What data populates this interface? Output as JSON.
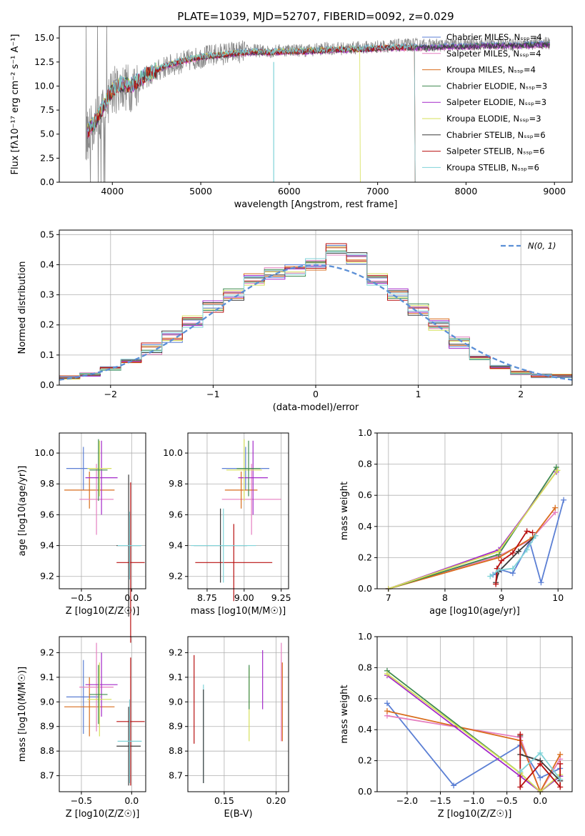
{
  "figure": {
    "title": "PLATE=1039, MJD=52707, FIBERID=0092, z=0.029"
  },
  "chart_data": [
    {
      "id": "spectrum",
      "type": "line",
      "title": "PLATE=1039, MJD=52707, FIBERID=0092, z=0.029",
      "xlabel": "wavelength [Angstrom, rest frame]",
      "ylabel": "Flux [fλ10⁻¹⁷ erg cm⁻² s⁻¹ A⁻¹]",
      "xlim": [
        3400,
        9200
      ],
      "ylim": [
        0,
        16.2
      ],
      "xticks": [
        4000,
        5000,
        6000,
        7000,
        8000,
        9000
      ],
      "yticks": [
        0.0,
        2.5,
        5.0,
        7.5,
        10.0,
        12.5,
        15.0
      ],
      "grid": false,
      "legend_position": "right",
      "x": [
        3700,
        3800,
        3900,
        3950,
        4000,
        4100,
        4200,
        4300,
        4400,
        4500,
        4600,
        4800,
        5000,
        5200,
        5400,
        5600,
        5800,
        6000,
        6200,
        6400,
        6600,
        6800,
        7000,
        7200,
        7400,
        7600,
        7800,
        8000,
        8200,
        8400,
        8600,
        8800,
        8900
      ],
      "observed_flux": [
        4.5,
        6.0,
        7.5,
        8.5,
        9.5,
        10.0,
        9.8,
        10.5,
        11.0,
        11.5,
        12.0,
        12.5,
        13.0,
        13.3,
        13.5,
        13.7,
        13.6,
        13.8,
        13.7,
        13.9,
        13.9,
        14.0,
        14.1,
        14.2,
        14.3,
        14.2,
        14.3,
        14.3,
        14.4,
        14.4,
        14.3,
        14.5,
        14.5
      ],
      "model_flux": [
        5.0,
        6.2,
        7.8,
        8.8,
        9.6,
        10.2,
        10.0,
        10.6,
        11.2,
        11.6,
        12.1,
        12.6,
        13.0,
        13.2,
        13.4,
        13.5,
        13.5,
        13.6,
        13.6,
        13.7,
        13.8,
        13.8,
        13.9,
        14.0,
        14.0,
        14.0,
        14.1,
        14.1,
        14.2,
        14.2,
        14.2,
        14.3,
        14.3
      ],
      "series": [
        {
          "name": "Chabrier MILES, N_SSP=4",
          "color": "#5b7fd4"
        },
        {
          "name": "Salpeter MILES, N_SSP=4",
          "color": "#e57fc0"
        },
        {
          "name": "Kroupa MILES, N_SSP=4",
          "color": "#d96d1c"
        },
        {
          "name": "Chabrier ELODIE, N_SSP=3",
          "color": "#3f8a4f"
        },
        {
          "name": "Salpeter ELODIE, N_SSP=3",
          "color": "#a329c9"
        },
        {
          "name": "Kroupa ELODIE, N_SSP=3",
          "color": "#d6e05a"
        },
        {
          "name": "Chabrier STELIB, N_SSP=6",
          "color": "#3a3a3a"
        },
        {
          "name": "Salpeter STELIB, N_SSP=6",
          "color": "#b80f0f"
        },
        {
          "name": "Kroupa STELIB, N_SSP=6",
          "color": "#7fd3d8"
        }
      ]
    },
    {
      "id": "residuals",
      "type": "line",
      "xlabel": "(data-model)/error",
      "ylabel": "Normed distribution",
      "xlim": [
        -2.5,
        2.5
      ],
      "ylim": [
        0,
        0.515
      ],
      "xticks": [
        -2,
        -1,
        0,
        1,
        2
      ],
      "yticks": [
        0.0,
        0.1,
        0.2,
        0.3,
        0.4,
        0.5
      ],
      "grid": true,
      "legend_position": "top-right",
      "legend": "N(0, 1)",
      "bin_edges": [
        -2.5,
        -2.3,
        -2.1,
        -1.9,
        -1.7,
        -1.5,
        -1.3,
        -1.1,
        -0.9,
        -0.7,
        -0.5,
        -0.3,
        -0.1,
        0.1,
        0.3,
        0.5,
        0.7,
        0.9,
        1.1,
        1.3,
        1.5,
        1.7,
        1.9,
        2.1,
        2.3,
        2.5
      ],
      "histogram": [
        0.025,
        0.035,
        0.055,
        0.08,
        0.12,
        0.16,
        0.21,
        0.26,
        0.3,
        0.35,
        0.37,
        0.38,
        0.4,
        0.45,
        0.42,
        0.35,
        0.3,
        0.25,
        0.2,
        0.14,
        0.09,
        0.06,
        0.04,
        0.03,
        0.03
      ]
    },
    {
      "id": "age_vs_Z",
      "type": "scatter",
      "xlabel": "Z [log10(Z/Z☉)]",
      "ylabel": "age [log10(age/yr)]",
      "xlim": [
        -0.72,
        0.14
      ],
      "ylim": [
        9.12,
        10.13
      ],
      "xticks": [
        -0.5,
        0.0
      ],
      "yticks": [
        9.2,
        9.4,
        9.6,
        9.8,
        10.0
      ],
      "grid": true,
      "points": [
        {
          "x": -0.48,
          "y": 9.9,
          "xerr": 0.17,
          "yerr": 0.14,
          "color": "#5b7fd4"
        },
        {
          "x": -0.42,
          "y": 9.76,
          "xerr": 0.25,
          "yerr": 0.12,
          "color": "#d96d1c"
        },
        {
          "x": -0.35,
          "y": 9.7,
          "xerr": 0.17,
          "yerr": 0.23,
          "color": "#e57fc0"
        },
        {
          "x": -0.3,
          "y": 9.84,
          "xerr": 0.16,
          "yerr": 0.24,
          "color": "#a329c9"
        },
        {
          "x": -0.32,
          "y": 9.9,
          "xerr": 0.12,
          "yerr": 0.18,
          "color": "#d6e05a"
        },
        {
          "x": -0.33,
          "y": 9.89,
          "xerr": 0.09,
          "yerr": 0.2,
          "color": "#3f8a4f"
        },
        {
          "x": -0.03,
          "y": 9.4,
          "xerr": 0.12,
          "yerr": 0.46,
          "color": "#3a3a3a"
        },
        {
          "x": -0.01,
          "y": 9.29,
          "xerr": 0.14,
          "yerr": 0.52,
          "color": "#b80f0f"
        },
        {
          "x": -0.02,
          "y": 9.4,
          "xerr": 0.12,
          "yerr": 0.22,
          "color": "#7fd3d8"
        }
      ]
    },
    {
      "id": "age_vs_mass",
      "type": "scatter",
      "xlabel": "mass [log10(M/M☉)]",
      "ylabel": "",
      "xlim": [
        8.62,
        9.3
      ],
      "ylim": [
        9.12,
        10.13
      ],
      "xticks": [
        8.75,
        9.0,
        9.25
      ],
      "yticks": [
        9.2,
        9.4,
        9.6,
        9.8,
        10.0
      ],
      "grid": true,
      "points": [
        {
          "x": 9.01,
          "y": 9.9,
          "xerr": 0.16,
          "yerr": 0.14,
          "color": "#5b7fd4"
        },
        {
          "x": 9.05,
          "y": 9.7,
          "xerr": 0.2,
          "yerr": 0.23,
          "color": "#e57fc0"
        },
        {
          "x": 8.98,
          "y": 9.76,
          "xerr": 0.11,
          "yerr": 0.12,
          "color": "#d96d1c"
        },
        {
          "x": 9.06,
          "y": 9.84,
          "xerr": 0.1,
          "yerr": 0.24,
          "color": "#a329c9"
        },
        {
          "x": 9.0,
          "y": 9.89,
          "xerr": 0.12,
          "yerr": 0.2,
          "color": "#d6e05a"
        },
        {
          "x": 9.03,
          "y": 9.9,
          "xerr": 0.08,
          "yerr": 0.18,
          "color": "#3f8a4f"
        },
        {
          "x": 8.84,
          "y": 9.4,
          "xerr": 0.18,
          "yerr": 0.24,
          "color": "#3a3a3a"
        },
        {
          "x": 8.93,
          "y": 9.29,
          "xerr": 0.26,
          "yerr": 0.25,
          "color": "#b80f0f"
        },
        {
          "x": 8.86,
          "y": 9.4,
          "xerr": 0.22,
          "yerr": 0.24,
          "color": "#7fd3d8"
        }
      ]
    },
    {
      "id": "weight_vs_age",
      "type": "line",
      "xlabel": "age [log10(age/yr)]",
      "ylabel": "mass weight",
      "xlim": [
        6.8,
        10.25
      ],
      "ylim": [
        0,
        1.0
      ],
      "xticks": [
        7,
        8,
        9,
        10
      ],
      "yticks": [
        0.0,
        0.2,
        0.4,
        0.6,
        0.8,
        1.0
      ],
      "grid": true,
      "series": [
        {
          "color": "#5b7fd4",
          "x": [
            8.85,
            9.0,
            9.2,
            9.5,
            9.7,
            10.1
          ],
          "y": [
            0.09,
            0.12,
            0.1,
            0.3,
            0.04,
            0.57
          ]
        },
        {
          "color": "#e57fc0",
          "x": [
            7.0,
            8.95,
            9.5,
            9.95
          ],
          "y": [
            0.0,
            0.21,
            0.31,
            0.49
          ]
        },
        {
          "color": "#d96d1c",
          "x": [
            7.0,
            8.95,
            9.55,
            9.95
          ],
          "y": [
            0.0,
            0.2,
            0.33,
            0.52
          ]
        },
        {
          "color": "#3f8a4f",
          "x": [
            7.0,
            8.95,
            9.97
          ],
          "y": [
            0.0,
            0.22,
            0.78
          ]
        },
        {
          "color": "#a329c9",
          "x": [
            7.0,
            8.95,
            9.97
          ],
          "y": [
            0.0,
            0.25,
            0.75
          ]
        },
        {
          "color": "#d6e05a",
          "x": [
            7.0,
            8.95,
            9.99
          ],
          "y": [
            0.0,
            0.24,
            0.76
          ]
        },
        {
          "color": "#3a3a3a",
          "x": [
            8.9,
            8.95,
            9.3,
            9.6
          ],
          "y": [
            0.04,
            0.11,
            0.24,
            0.34
          ]
        },
        {
          "color": "#b80f0f",
          "x": [
            8.9,
            8.92,
            9.0,
            9.2,
            9.45,
            9.55
          ],
          "y": [
            0.03,
            0.13,
            0.18,
            0.23,
            0.37,
            0.36
          ]
        },
        {
          "color": "#7fd3d8",
          "x": [
            8.8,
            8.95,
            9.2,
            9.45,
            9.6
          ],
          "y": [
            0.08,
            0.12,
            0.13,
            0.25,
            0.34
          ]
        }
      ]
    },
    {
      "id": "mass_vs_Z",
      "type": "scatter",
      "xlabel": "Z [log10(Z/Z☉)]",
      "ylabel": "mass [log10(M/M☉)]",
      "xlim": [
        -0.72,
        0.14
      ],
      "ylim": [
        8.635,
        9.265
      ],
      "xticks": [
        -0.5,
        0.0
      ],
      "yticks": [
        8.7,
        8.8,
        8.9,
        9.0,
        9.1,
        9.2
      ],
      "grid": true,
      "points": [
        {
          "x": -0.48,
          "y": 9.02,
          "xerr": 0.17,
          "yerr": 0.15,
          "color": "#5b7fd4"
        },
        {
          "x": -0.42,
          "y": 8.98,
          "xerr": 0.25,
          "yerr": 0.12,
          "color": "#d96d1c"
        },
        {
          "x": -0.35,
          "y": 9.06,
          "xerr": 0.17,
          "yerr": 0.18,
          "color": "#e57fc0"
        },
        {
          "x": -0.3,
          "y": 9.07,
          "xerr": 0.16,
          "yerr": 0.13,
          "color": "#a329c9"
        },
        {
          "x": -0.32,
          "y": 9.01,
          "xerr": 0.12,
          "yerr": 0.15,
          "color": "#d6e05a"
        },
        {
          "x": -0.33,
          "y": 9.03,
          "xerr": 0.09,
          "yerr": 0.12,
          "color": "#3f8a4f"
        },
        {
          "x": -0.03,
          "y": 8.82,
          "xerr": 0.12,
          "yerr": 0.16,
          "color": "#3a3a3a"
        },
        {
          "x": -0.01,
          "y": 8.92,
          "xerr": 0.14,
          "yerr": 0.26,
          "color": "#b80f0f"
        },
        {
          "x": -0.02,
          "y": 8.84,
          "xerr": 0.12,
          "yerr": 0.17,
          "color": "#7fd3d8"
        }
      ]
    },
    {
      "id": "mass_vs_EBV",
      "type": "scatter",
      "xlabel": "E(B-V)",
      "ylabel": "",
      "xlim": [
        0.115,
        0.212
      ],
      "ylim": [
        8.635,
        9.265
      ],
      "xticks": [
        0.15,
        0.2
      ],
      "yticks": [
        8.7,
        8.8,
        8.9,
        9.0,
        9.1,
        9.2
      ],
      "grid": true,
      "points": [
        {
          "x": 0.121,
          "y": 9.01,
          "yerr": 0.18,
          "color": "#b80f0f"
        },
        {
          "x": 0.13,
          "y": 8.87,
          "yerr": 0.2,
          "color": "#7fd3d8"
        },
        {
          "x": 0.13,
          "y": 8.86,
          "yerr": 0.19,
          "color": "#3a3a3a"
        },
        {
          "x": 0.174,
          "y": 8.99,
          "yerr": 0.15,
          "color": "#d6e05a"
        },
        {
          "x": 0.174,
          "y": 9.06,
          "yerr": 0.09,
          "color": "#3f8a4f"
        },
        {
          "x": 0.187,
          "y": 9.09,
          "yerr": 0.12,
          "color": "#a329c9"
        },
        {
          "x": 0.205,
          "y": 9.04,
          "yerr": 0.2,
          "color": "#e57fc0"
        },
        {
          "x": 0.206,
          "y": 9.0,
          "yerr": 0.16,
          "color": "#d96d1c"
        }
      ]
    },
    {
      "id": "weight_vs_Z",
      "type": "line",
      "xlabel": "Z [log10(Z/Z☉)]",
      "ylabel": "mass weight",
      "xlim": [
        -2.45,
        0.48
      ],
      "ylim": [
        0,
        1.0
      ],
      "xticks": [
        -2.0,
        -1.5,
        -1.0,
        -0.5,
        0.0
      ],
      "yticks": [
        0.0,
        0.2,
        0.4,
        0.6,
        0.8,
        1.0
      ],
      "grid": true,
      "series": [
        {
          "color": "#5b7fd4",
          "x": [
            -2.3,
            -1.3,
            -0.3,
            0.0,
            0.3
          ],
          "y": [
            0.57,
            0.04,
            0.3,
            0.09,
            0.15
          ]
        },
        {
          "color": "#e57fc0",
          "x": [
            -2.3,
            -0.3,
            0.0,
            0.3
          ],
          "y": [
            0.49,
            0.35,
            0.0,
            0.21
          ]
        },
        {
          "color": "#d96d1c",
          "x": [
            -2.3,
            -0.3,
            0.0,
            0.3
          ],
          "y": [
            0.52,
            0.33,
            0.0,
            0.24
          ]
        },
        {
          "color": "#3f8a4f",
          "x": [
            -2.3,
            -0.3,
            0.0,
            0.3
          ],
          "y": [
            0.78,
            0.12,
            0.0,
            0.1
          ]
        },
        {
          "color": "#a329c9",
          "x": [
            -2.3,
            -0.3,
            0.0,
            0.3
          ],
          "y": [
            0.75,
            0.1,
            0.0,
            0.1
          ]
        },
        {
          "color": "#d6e05a",
          "x": [
            -2.3,
            -0.3,
            0.0,
            0.3
          ],
          "y": [
            0.76,
            0.12,
            0.0,
            0.11
          ]
        },
        {
          "color": "#3a3a3a",
          "x": [
            -0.3,
            -0.3,
            0.0,
            0.3
          ],
          "y": [
            0.36,
            0.24,
            0.2,
            0.07
          ]
        },
        {
          "color": "#b80f0f",
          "x": [
            -0.3,
            -0.3,
            0.0,
            0.3,
            0.3
          ],
          "y": [
            0.37,
            0.03,
            0.18,
            0.03,
            0.18
          ]
        },
        {
          "color": "#7fd3d8",
          "x": [
            -0.3,
            0.0,
            0.3
          ],
          "y": [
            0.13,
            0.25,
            0.08
          ]
        }
      ]
    }
  ]
}
